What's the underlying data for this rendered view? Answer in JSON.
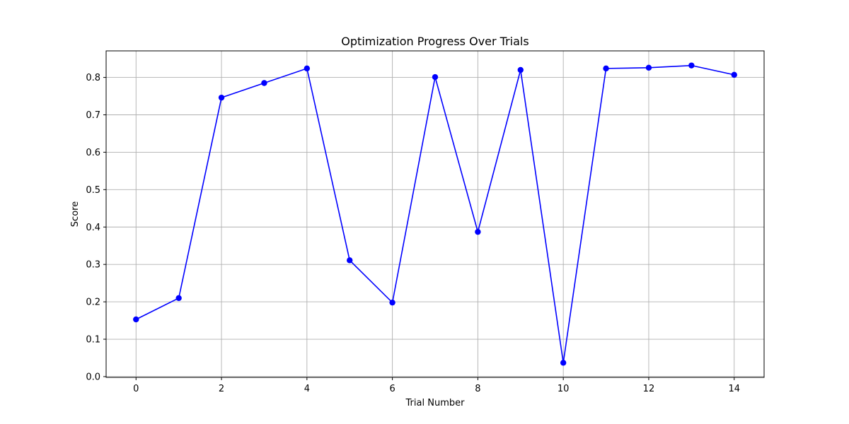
{
  "chart_data": {
    "type": "line",
    "title": "Optimization Progress Over Trials",
    "xlabel": "Trial Number",
    "ylabel": "Score",
    "x": [
      0,
      1,
      2,
      3,
      4,
      5,
      6,
      7,
      8,
      9,
      10,
      11,
      12,
      13,
      14
    ],
    "series": [
      {
        "values": [
          0.153,
          0.21,
          0.746,
          0.785,
          0.824,
          0.311,
          0.198,
          0.801,
          0.387,
          0.82,
          0.037,
          0.824,
          0.826,
          0.832,
          0.807
        ],
        "color": "#0000ff",
        "marker": "circle"
      }
    ],
    "xlim": [
      -0.7,
      14.7
    ],
    "ylim": [
      -0.002,
      0.871
    ],
    "xticks": [
      0,
      2,
      4,
      6,
      8,
      10,
      12,
      14
    ],
    "yticks": [
      0.0,
      0.1,
      0.2,
      0.3,
      0.4,
      0.5,
      0.6,
      0.7,
      0.8
    ],
    "ytick_labels": [
      "0.0",
      "0.1",
      "0.2",
      "0.3",
      "0.4",
      "0.5",
      "0.6",
      "0.7",
      "0.8"
    ],
    "grid": true
  }
}
